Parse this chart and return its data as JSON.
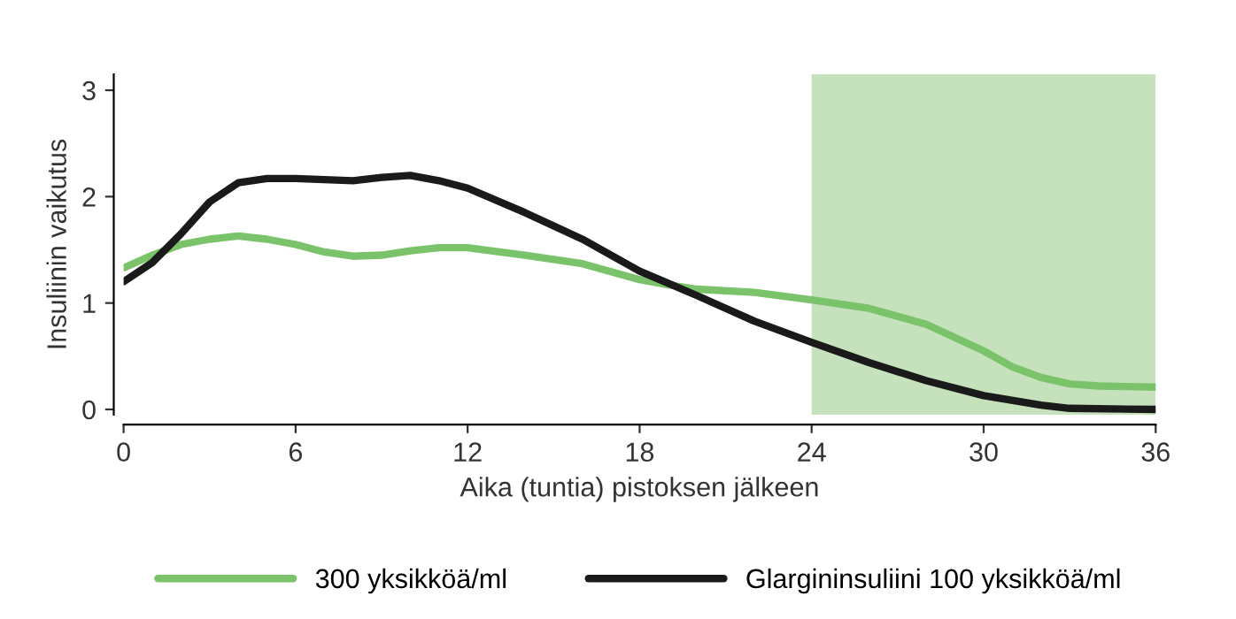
{
  "chart_data": {
    "type": "line",
    "xlabel": "Aika (tuntia) pistoksen jälkeen",
    "ylabel": "Insuliinin vaikutus",
    "xlim": [
      0,
      36
    ],
    "xticks": [
      0,
      6,
      12,
      18,
      24,
      30,
      36
    ],
    "ylim": [
      -0.05,
      3.15
    ],
    "yticks": [
      0,
      1,
      2,
      3
    ],
    "grid": false,
    "legend": "bottom",
    "line_style": "solid",
    "marker": "none",
    "bands": [
      {
        "axis": "x",
        "from": 24,
        "to": 36,
        "color": "#c5e2bd"
      }
    ],
    "series": [
      {
        "name": "300 yksikköä/ml",
        "color": "#7ac36a",
        "x": [
          0,
          1,
          2,
          3,
          4,
          5,
          6,
          7,
          8,
          9,
          10,
          11,
          12,
          14,
          16,
          18,
          19,
          20,
          22,
          24,
          26,
          28,
          30,
          31,
          32,
          33,
          34,
          36
        ],
        "values": [
          1.33,
          1.45,
          1.55,
          1.6,
          1.63,
          1.6,
          1.55,
          1.48,
          1.44,
          1.45,
          1.49,
          1.52,
          1.52,
          1.45,
          1.37,
          1.22,
          1.17,
          1.13,
          1.1,
          1.03,
          0.95,
          0.8,
          0.55,
          0.4,
          0.3,
          0.24,
          0.22,
          0.21
        ]
      },
      {
        "name": "Glargininsuliini 100 yksikköä/ml",
        "color": "#1a1a1a",
        "x": [
          0,
          1,
          2,
          3,
          4,
          5,
          6,
          8,
          9,
          10,
          11,
          12,
          14,
          16,
          18,
          20,
          22,
          24,
          26,
          28,
          30,
          32,
          33,
          36
        ],
        "values": [
          1.2,
          1.38,
          1.65,
          1.95,
          2.13,
          2.17,
          2.17,
          2.15,
          2.18,
          2.2,
          2.15,
          2.08,
          1.85,
          1.6,
          1.3,
          1.07,
          0.83,
          0.63,
          0.44,
          0.27,
          0.13,
          0.04,
          0.01,
          0.0
        ]
      }
    ]
  }
}
